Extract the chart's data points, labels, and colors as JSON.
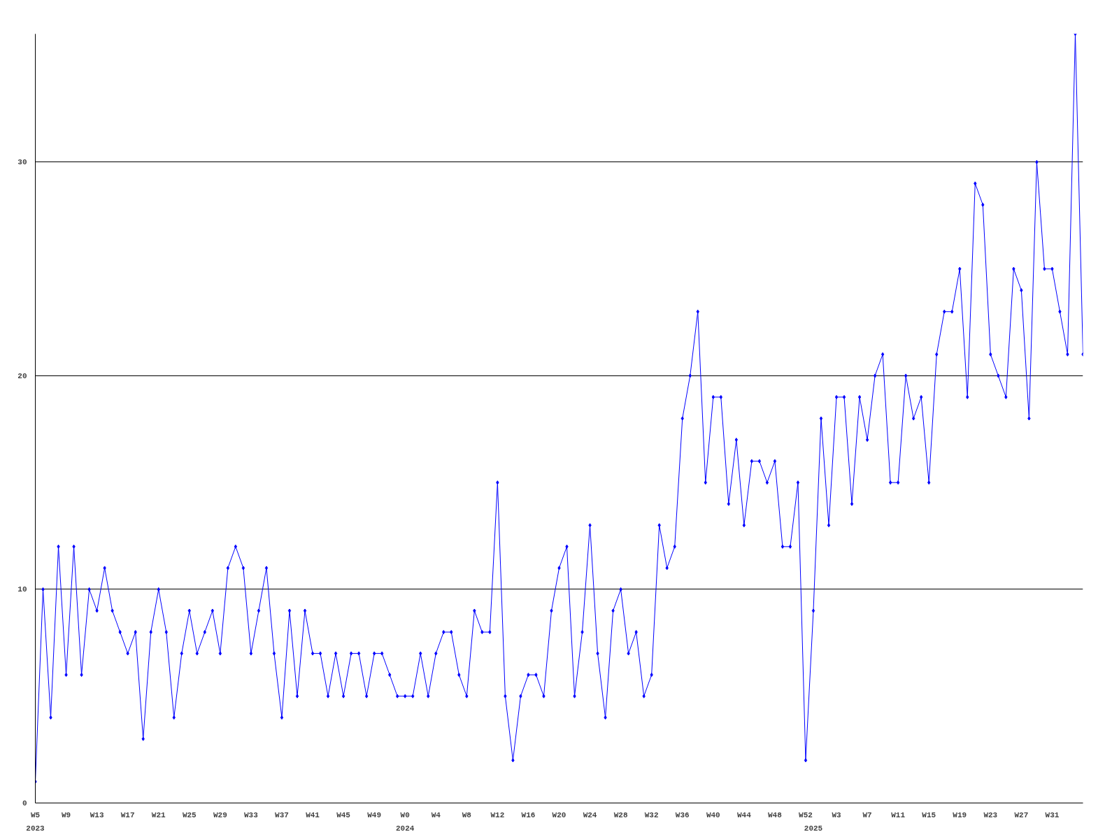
{
  "chart_data": {
    "type": "line",
    "categories": [
      "W5",
      null,
      null,
      null,
      "W9",
      null,
      null,
      null,
      "W13",
      null,
      null,
      null,
      "W17",
      null,
      null,
      null,
      "W21",
      null,
      null,
      null,
      "W25",
      null,
      null,
      null,
      "W29",
      null,
      null,
      null,
      "W33",
      null,
      null,
      null,
      "W37",
      null,
      null,
      null,
      "W41",
      null,
      null,
      null,
      "W45",
      null,
      null,
      null,
      "W49",
      null,
      null,
      null,
      "W0",
      null,
      null,
      null,
      "W4",
      null,
      null,
      null,
      "W8",
      null,
      null,
      null,
      "W12",
      null,
      null,
      null,
      "W16",
      null,
      null,
      null,
      "W20",
      null,
      null,
      null,
      "W24",
      null,
      null,
      null,
      "W28",
      null,
      null,
      null,
      "W32",
      null,
      null,
      null,
      "W36",
      null,
      null,
      null,
      "W40",
      null,
      null,
      null,
      "W44",
      null,
      null,
      null,
      "W48",
      null,
      null,
      null,
      "W52",
      null,
      null,
      null,
      "W3",
      null,
      null,
      null,
      "W7",
      null,
      null,
      null,
      "W11",
      null,
      null,
      null,
      "W15",
      null,
      null,
      null,
      "W19",
      null,
      null,
      null,
      "W23",
      null,
      null,
      null,
      "W27",
      null,
      null,
      null,
      "W31",
      null,
      null,
      null,
      null
    ],
    "series": [
      {
        "color": "#0000ff",
        "values": [
          1,
          10,
          4,
          12,
          6,
          12,
          6,
          10,
          9,
          11,
          9,
          8,
          7,
          8,
          3,
          8,
          10,
          8,
          4,
          7,
          9,
          7,
          8,
          9,
          7,
          11,
          12,
          11,
          7,
          9,
          11,
          7,
          4,
          9,
          5,
          9,
          7,
          7,
          5,
          7,
          5,
          7,
          7,
          5,
          7,
          7,
          6,
          5,
          5,
          5,
          7,
          5,
          7,
          8,
          8,
          6,
          5,
          9,
          8,
          8,
          15,
          5,
          2,
          5,
          6,
          6,
          5,
          9,
          11,
          12,
          5,
          8,
          13,
          7,
          4,
          9,
          10,
          7,
          8,
          5,
          6,
          13,
          11,
          12,
          18,
          20,
          23,
          15,
          19,
          19,
          14,
          17,
          13,
          16,
          16,
          15,
          16,
          12,
          12,
          15,
          2,
          9,
          18,
          13,
          19,
          19,
          14,
          19,
          17,
          20,
          21,
          15,
          15,
          20,
          18,
          19,
          15,
          21,
          23,
          23,
          25,
          19,
          29,
          28,
          21,
          20,
          19,
          25,
          24,
          18,
          30,
          25,
          25,
          23,
          21,
          36,
          21
        ]
      }
    ],
    "ylim": [
      0,
      36
    ],
    "yticks": [
      0,
      10,
      20,
      30
    ],
    "grid": "y",
    "marker": "diamond",
    "line_style": "solid",
    "annotations": [
      "2023",
      "2024",
      "2025"
    ]
  }
}
